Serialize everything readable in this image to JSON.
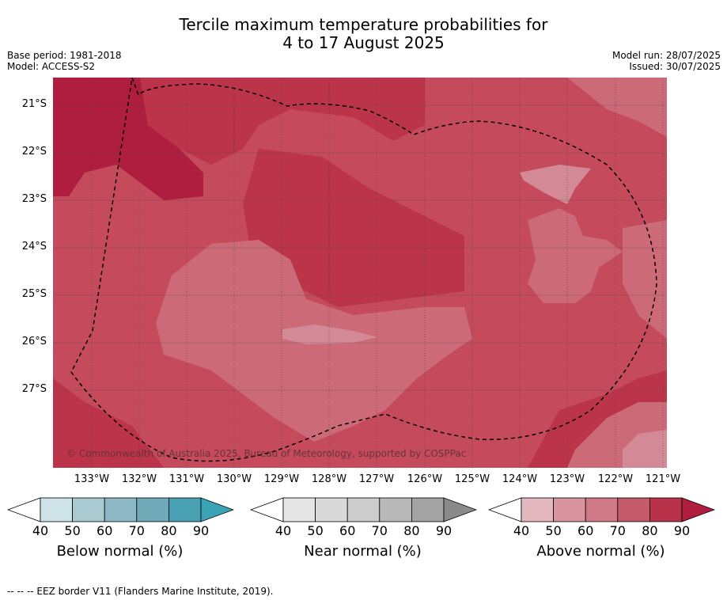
{
  "title_line1": "Tercile maximum temperature probabilities for",
  "title_line2": "4 to 17 August 2025",
  "meta_left": [
    "Base period: 1981-2018",
    "Model: ACCESS-S2"
  ],
  "meta_right": [
    "Model run: 28/07/2025",
    "Issued: 30/07/2025"
  ],
  "copyright": "© Commonwealth of Australia 2025, Bureau of Meteorology, supported by COSPPac",
  "lat_labels": [
    "21°S",
    "22°S",
    "23°S",
    "24°S",
    "25°S",
    "26°S",
    "27°S"
  ],
  "lon_labels": [
    "133°W",
    "132°W",
    "131°W",
    "130°W",
    "129°W",
    "128°W",
    "127°W",
    "126°W",
    "125°W",
    "124°W",
    "123°W",
    "122°W",
    "121°W"
  ],
  "legends": [
    {
      "title": "Below normal (%)",
      "ticks": [
        "40",
        "50",
        "60",
        "70",
        "80",
        "90"
      ],
      "colors": [
        "#ffffff",
        "#cde3e8",
        "#a9cad0",
        "#8cb9c4",
        "#70a9b8",
        "#4aa1b3",
        "#3ba3b6"
      ]
    },
    {
      "title": "Near normal (%)",
      "ticks": [
        "40",
        "50",
        "60",
        "70",
        "80",
        "90"
      ],
      "colors": [
        "#ffffff",
        "#e5e5e5",
        "#d9d9d9",
        "#cccccc",
        "#b8b8b8",
        "#a3a3a3",
        "#8a8a8a"
      ]
    },
    {
      "title": "Above normal (%)",
      "ticks": [
        "40",
        "50",
        "60",
        "70",
        "80",
        "90"
      ],
      "colors": [
        "#ffffff",
        "#e3b8bf",
        "#d9959f",
        "#cf7a86",
        "#c45a6a",
        "#b8334a",
        "#b01e3f"
      ]
    }
  ],
  "map_colors": {
    "a90": "#b01e3f",
    "a80": "#bc3449",
    "a70": "#c44a5c",
    "a60": "#cc6a78",
    "a50": "#d48a96"
  },
  "footer": "--  --  -- EEZ border V11 (Flanders Marine Institute, 2019)."
}
